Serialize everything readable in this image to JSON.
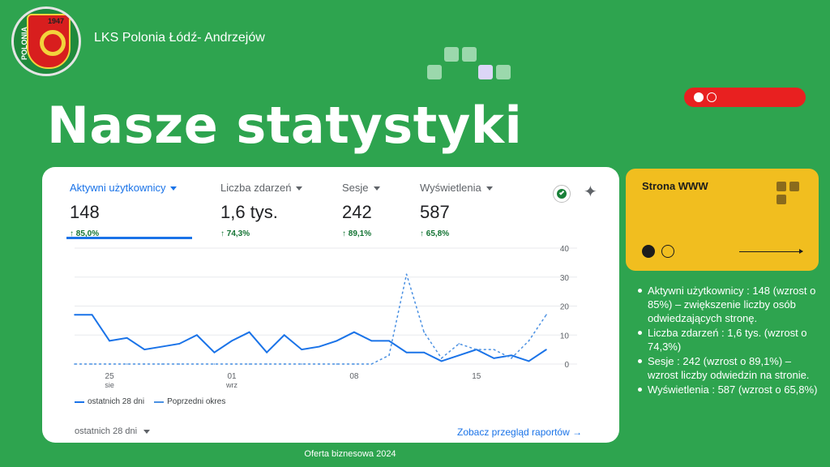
{
  "header": {
    "logo_text": "POLONIA",
    "logo_year": "1947",
    "club_name": "LKS Polonia Łódź- Andrzejów",
    "title": "Nasze statystyki"
  },
  "analytics": {
    "metrics": [
      {
        "label": "Aktywni użytkownicy",
        "value": "148",
        "change": "↑ 85,0%"
      },
      {
        "label": "Liczba zdarzeń",
        "value": "1,6 tys.",
        "change": "↑ 74,3%"
      },
      {
        "label": "Sesje",
        "value": "242",
        "change": "↑ 89,1%"
      },
      {
        "label": "Wyświetlenia",
        "value": "587",
        "change": "↑ 65,8%"
      }
    ],
    "legend": {
      "current": "ostatnich 28 dni",
      "previous": "Poprzedni okres"
    },
    "range_label": "ostatnich 28 dni",
    "report_link": "Zobacz przegląd raportów →",
    "icons": [
      "check-circle-icon",
      "sparkle-icon"
    ]
  },
  "chart_data": {
    "type": "line",
    "x_ticks": [
      {
        "day": "25",
        "month": "sie"
      },
      {
        "day": "01",
        "month": "wrz"
      },
      {
        "day": "08",
        "month": ""
      },
      {
        "day": "15",
        "month": ""
      }
    ],
    "y_ticks": [
      "40",
      "30",
      "20",
      "10",
      "0"
    ],
    "ylim": [
      0,
      40
    ],
    "grid": true,
    "series": [
      {
        "name": "ostatnich 28 dni",
        "style": "solid",
        "color": "#1a73e8",
        "values": [
          17,
          17,
          8,
          9,
          5,
          6,
          7,
          10,
          4,
          8,
          11,
          4,
          10,
          5,
          6,
          8,
          11,
          8,
          8,
          4,
          4,
          1,
          3,
          5,
          2,
          3,
          1,
          5
        ]
      },
      {
        "name": "Poprzedni okres",
        "style": "dashed",
        "color": "#4a90e2",
        "values": [
          0,
          0,
          0,
          0,
          0,
          0,
          0,
          0,
          0,
          0,
          0,
          0,
          0,
          0,
          0,
          0,
          0,
          0,
          3,
          31,
          11,
          2,
          7,
          5,
          5,
          2,
          8,
          17
        ]
      }
    ]
  },
  "side_card": {
    "title": "Strona WWW"
  },
  "stats_list": [
    "Aktywni użytkownicy : 148 (wzrost o 85%) – zwiększenie liczby osób odwiedzających stronę.",
    "Liczba zdarzeń : 1,6 tys. (wzrost o 74,3%)",
    "Sesje : 242 (wzrost o 89,1%) – wzrost liczby odwiedzin na stronie.",
    "Wyświetlenia : 587 (wzrost o 65,8%)"
  ],
  "footer": "Oferta biznesowa 2024",
  "colors": {
    "background": "#2ea44f",
    "pill": "#e82020",
    "card": "#f1be1f",
    "accent": "#1a73e8"
  }
}
